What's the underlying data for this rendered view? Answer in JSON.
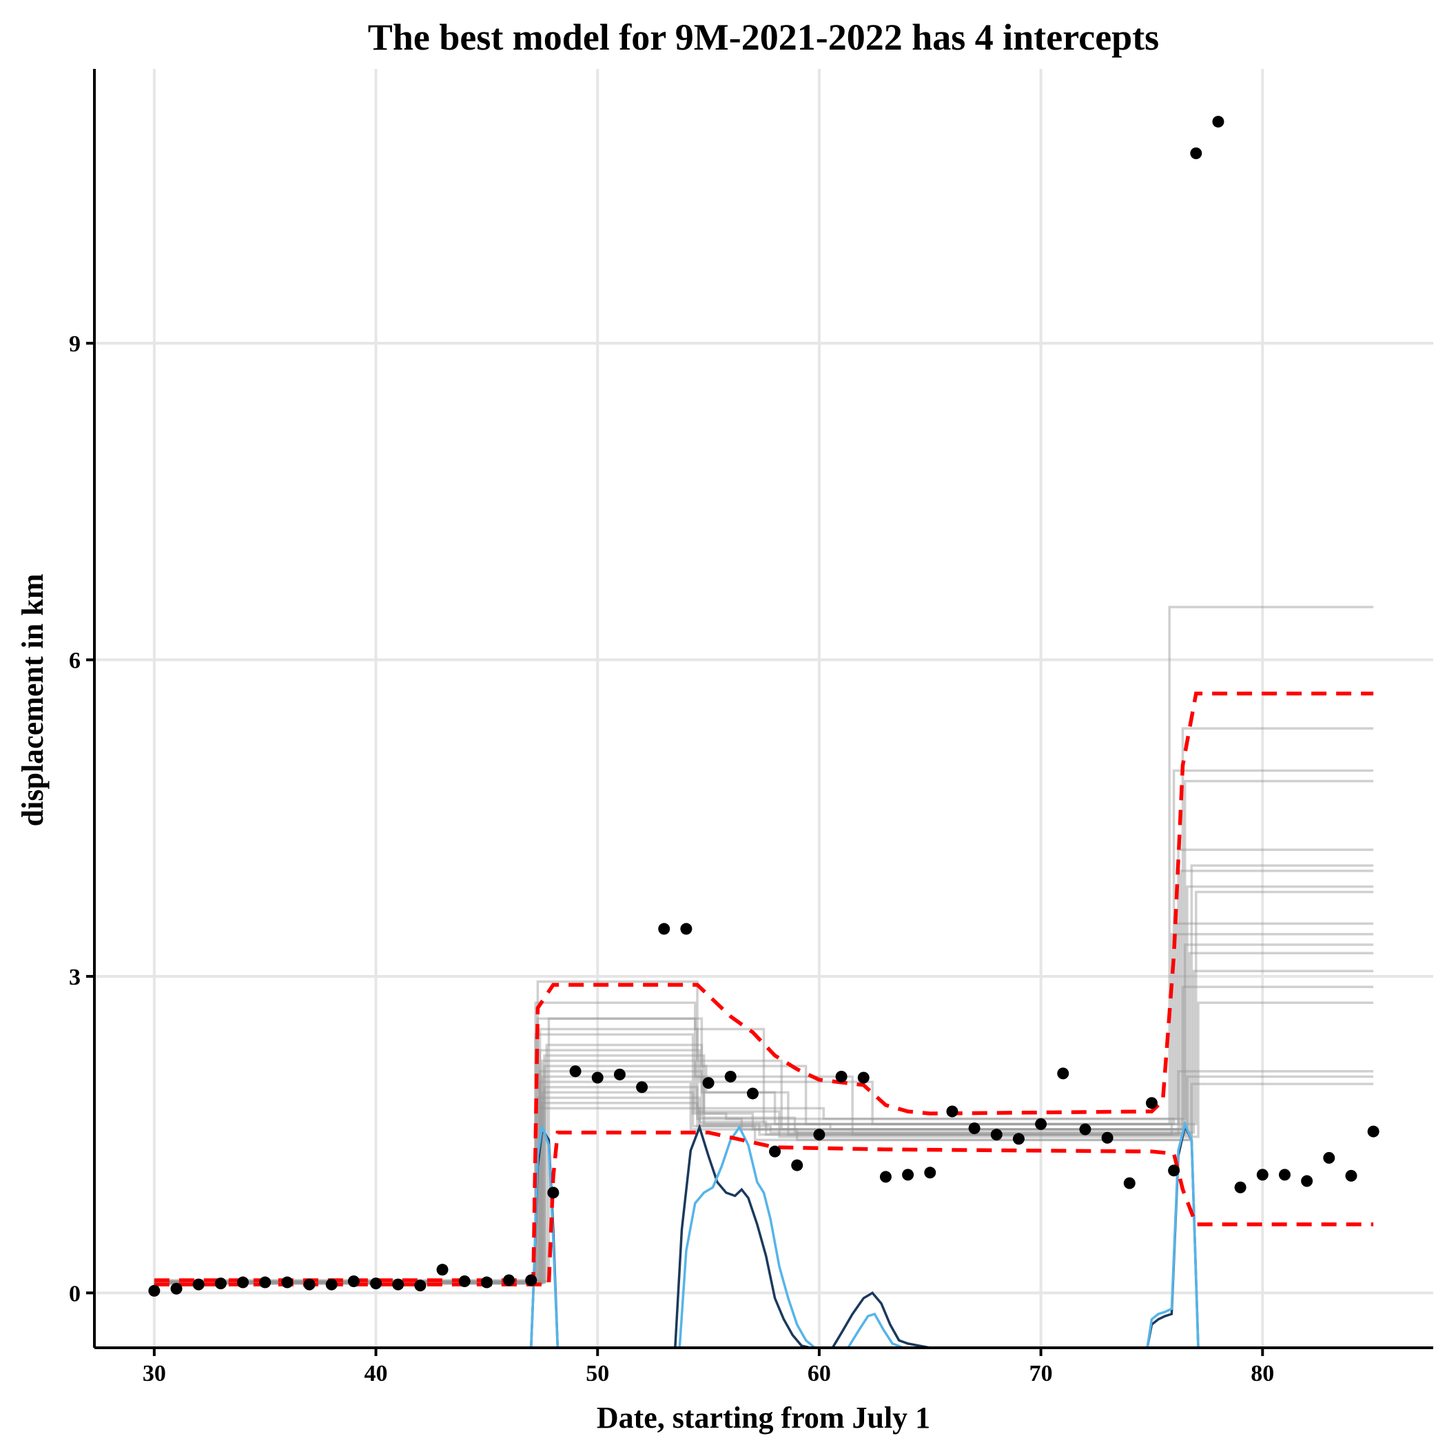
{
  "chart_data": {
    "type": "line",
    "title": "The best model for 9M-2021-2022 has 4 intercepts",
    "xlabel": "Date, starting from July 1",
    "ylabel": "displacement in km",
    "xlim": [
      27.3,
      87.7
    ],
    "ylim": [
      -0.52,
      11.6
    ],
    "x_ticks": [
      30,
      40,
      50,
      60,
      70,
      80
    ],
    "y_ticks": [
      0,
      3,
      6,
      9
    ],
    "grid": true,
    "legend": "none",
    "colors": {
      "points": "#000000",
      "model_draws": "#969696",
      "credible_interval": "#ff0000",
      "density_dark": "#1b3a5c",
      "density_light": "#56b4e9"
    },
    "observed": {
      "x": [
        30,
        31,
        32,
        33,
        34,
        35,
        36,
        37,
        38,
        39,
        40,
        41,
        42,
        43,
        44,
        45,
        46,
        47,
        48,
        49,
        50,
        51,
        52,
        53,
        54,
        55,
        56,
        57,
        58,
        59,
        60,
        61,
        62,
        63,
        64,
        65,
        66,
        67,
        68,
        69,
        70,
        71,
        72,
        73,
        74,
        75,
        76,
        77,
        78,
        79,
        80,
        81,
        82,
        83,
        84,
        85
      ],
      "y": [
        0.02,
        0.04,
        0.08,
        0.09,
        0.1,
        0.1,
        0.1,
        0.08,
        0.08,
        0.11,
        0.09,
        0.08,
        0.07,
        0.22,
        0.11,
        0.1,
        0.12,
        0.12,
        0.95,
        2.1,
        2.04,
        2.07,
        1.95,
        3.45,
        3.45,
        1.99,
        2.05,
        1.89,
        1.34,
        1.21,
        1.5,
        2.05,
        2.04,
        1.1,
        1.12,
        1.14,
        1.72,
        1.56,
        1.5,
        1.46,
        1.6,
        2.08,
        1.55,
        1.47,
        1.04,
        1.8,
        1.16,
        10.8,
        11.1,
        1.0,
        1.12,
        1.12,
        1.06,
        1.28,
        1.11,
        1.53
      ]
    },
    "credible_upper": {
      "x": [
        30,
        47.1,
        47.3,
        48,
        54.5,
        55,
        56,
        57,
        58,
        59,
        60,
        62,
        63,
        64,
        65,
        75,
        75.5,
        76,
        76.4,
        77,
        85
      ],
      "y": [
        0.12,
        0.12,
        2.7,
        2.92,
        2.92,
        2.82,
        2.62,
        2.47,
        2.25,
        2.12,
        2.02,
        1.97,
        1.78,
        1.72,
        1.7,
        1.72,
        1.82,
        3.2,
        5.0,
        5.68,
        5.68
      ]
    },
    "credible_lower": {
      "x": [
        30,
        47.8,
        48,
        48.2,
        55,
        58,
        63,
        75,
        76,
        76.4,
        77,
        85
      ],
      "y": [
        0.08,
        0.08,
        1.1,
        1.52,
        1.52,
        1.38,
        1.36,
        1.34,
        1.32,
        0.98,
        0.65,
        0.65
      ]
    },
    "model_draws": [
      {
        "cps": [
          47.2,
          54.4,
          57.5,
          75.8
        ],
        "lv": [
          0.1,
          2.75,
          2.5,
          1.6,
          6.5
        ]
      },
      {
        "cps": [
          47.3,
          54.5,
          58.3,
          76.4
        ],
        "lv": [
          0.09,
          2.95,
          2.2,
          1.55,
          5.35
        ]
      },
      {
        "cps": [
          47.3,
          54.7,
          59.4,
          76.0
        ],
        "lv": [
          0.11,
          2.6,
          2.15,
          1.6,
          4.95
        ]
      },
      {
        "cps": [
          47.4,
          54.5,
          60.2,
          76.5
        ],
        "lv": [
          0.1,
          2.5,
          1.75,
          1.65,
          4.85
        ]
      },
      {
        "cps": [
          47.4,
          54.6,
          62.4,
          76.2
        ],
        "lv": [
          0.1,
          2.3,
          2.0,
          1.6,
          4.2
        ]
      },
      {
        "cps": [
          47.5,
          54.4,
          61.5,
          76.8
        ],
        "lv": [
          0.12,
          2.2,
          2.05,
          1.5,
          4.05
        ]
      },
      {
        "cps": [
          47.5,
          54.8,
          57.0,
          76.3
        ],
        "lv": [
          0.09,
          2.05,
          1.7,
          1.55,
          4.0
        ]
      },
      {
        "cps": [
          47.6,
          54.5,
          56.5,
          76.6
        ],
        "lv": [
          0.1,
          1.95,
          1.65,
          1.55,
          3.85
        ]
      },
      {
        "cps": [
          47.6,
          54.9,
          58.0,
          77.0
        ],
        "lv": [
          0.1,
          2.15,
          1.9,
          1.6,
          3.8
        ]
      },
      {
        "cps": [
          47.2,
          54.3,
          55.8,
          76.1
        ],
        "lv": [
          0.1,
          2.45,
          1.7,
          1.65,
          3.5
        ]
      },
      {
        "cps": [
          47.7,
          54.7,
          58.6,
          75.9
        ],
        "lv": [
          0.11,
          2.35,
          1.9,
          1.5,
          3.4
        ]
      },
      {
        "cps": [
          47.3,
          54.6,
          57.3,
          76.5
        ],
        "lv": [
          0.1,
          1.85,
          1.6,
          1.5,
          3.3
        ]
      },
      {
        "cps": [
          47.4,
          54.2,
          59.0,
          76.7
        ],
        "lv": [
          0.09,
          2.0,
          1.55,
          1.45,
          3.22
        ]
      },
      {
        "cps": [
          47.5,
          54.5,
          57.8,
          76.9
        ],
        "lv": [
          0.1,
          1.8,
          1.58,
          1.52,
          3.05
        ]
      },
      {
        "cps": [
          47.6,
          54.8,
          60.5,
          76.4
        ],
        "lv": [
          0.1,
          2.25,
          1.6,
          1.55,
          2.9
        ]
      },
      {
        "cps": [
          47.8,
          54.4,
          58.2,
          77.1
        ],
        "lv": [
          0.11,
          2.6,
          1.72,
          1.48,
          2.75
        ]
      },
      {
        "cps": [
          47.2,
          54.6,
          57.6,
          76.2
        ],
        "lv": [
          0.1,
          1.75,
          1.62,
          1.5,
          2.1
        ]
      },
      {
        "cps": [
          47.4,
          54.7,
          58.9,
          76.6
        ],
        "lv": [
          0.1,
          2.1,
          1.66,
          1.52,
          2.05
        ]
      },
      {
        "cps": [
          47.5,
          54.3,
          57.1,
          76.8
        ],
        "lv": [
          0.09,
          1.9,
          1.58,
          1.45,
          1.98
        ]
      }
    ],
    "density_dark": [
      [
        47.0,
        -0.52
      ],
      [
        47.1,
        0.0
      ],
      [
        47.3,
        1.2
      ],
      [
        47.5,
        1.55
      ],
      [
        47.8,
        1.45
      ],
      [
        48.0,
        0.6
      ],
      [
        48.2,
        -0.52
      ],
      [
        53.5,
        -0.52
      ],
      [
        53.8,
        0.6
      ],
      [
        54.2,
        1.35
      ],
      [
        54.6,
        1.57
      ],
      [
        55.0,
        1.3
      ],
      [
        55.4,
        1.05
      ],
      [
        55.8,
        0.95
      ],
      [
        56.2,
        0.92
      ],
      [
        56.5,
        0.98
      ],
      [
        56.8,
        0.9
      ],
      [
        57.2,
        0.65
      ],
      [
        57.6,
        0.35
      ],
      [
        58.0,
        -0.05
      ],
      [
        58.4,
        -0.25
      ],
      [
        58.8,
        -0.4
      ],
      [
        59.2,
        -0.5
      ],
      [
        59.6,
        -0.52
      ],
      [
        60.6,
        -0.52
      ],
      [
        61.0,
        -0.38
      ],
      [
        61.5,
        -0.2
      ],
      [
        62.0,
        -0.05
      ],
      [
        62.4,
        0.0
      ],
      [
        62.8,
        -0.1
      ],
      [
        63.2,
        -0.3
      ],
      [
        63.6,
        -0.45
      ],
      [
        64.0,
        -0.48
      ],
      [
        64.5,
        -0.5
      ],
      [
        65.0,
        -0.52
      ],
      [
        74.8,
        -0.52
      ],
      [
        75.0,
        -0.3
      ],
      [
        75.3,
        -0.25
      ],
      [
        75.6,
        -0.22
      ],
      [
        75.9,
        -0.2
      ],
      [
        76.2,
        1.3
      ],
      [
        76.5,
        1.58
      ],
      [
        76.8,
        1.45
      ],
      [
        77.1,
        -0.52
      ]
    ],
    "density_light": [
      [
        47.0,
        -0.52
      ],
      [
        47.1,
        0.0
      ],
      [
        47.3,
        1.3
      ],
      [
        47.5,
        1.58
      ],
      [
        47.8,
        1.4
      ],
      [
        48.0,
        0.5
      ],
      [
        48.2,
        -0.52
      ],
      [
        53.7,
        -0.52
      ],
      [
        54.0,
        0.4
      ],
      [
        54.4,
        0.85
      ],
      [
        54.8,
        0.95
      ],
      [
        55.2,
        1.0
      ],
      [
        55.6,
        1.2
      ],
      [
        56.0,
        1.45
      ],
      [
        56.4,
        1.57
      ],
      [
        56.8,
        1.4
      ],
      [
        57.2,
        1.05
      ],
      [
        57.5,
        0.95
      ],
      [
        57.8,
        0.7
      ],
      [
        58.2,
        0.25
      ],
      [
        58.6,
        -0.05
      ],
      [
        59.0,
        -0.3
      ],
      [
        59.4,
        -0.45
      ],
      [
        59.8,
        -0.52
      ],
      [
        61.3,
        -0.52
      ],
      [
        61.8,
        -0.35
      ],
      [
        62.2,
        -0.22
      ],
      [
        62.5,
        -0.2
      ],
      [
        62.9,
        -0.35
      ],
      [
        63.3,
        -0.48
      ],
      [
        63.8,
        -0.52
      ],
      [
        74.8,
        -0.52
      ],
      [
        75.0,
        -0.25
      ],
      [
        75.3,
        -0.2
      ],
      [
        75.6,
        -0.18
      ],
      [
        75.9,
        -0.15
      ],
      [
        76.2,
        1.35
      ],
      [
        76.5,
        1.6
      ],
      [
        76.8,
        1.45
      ],
      [
        77.1,
        -0.52
      ]
    ]
  }
}
